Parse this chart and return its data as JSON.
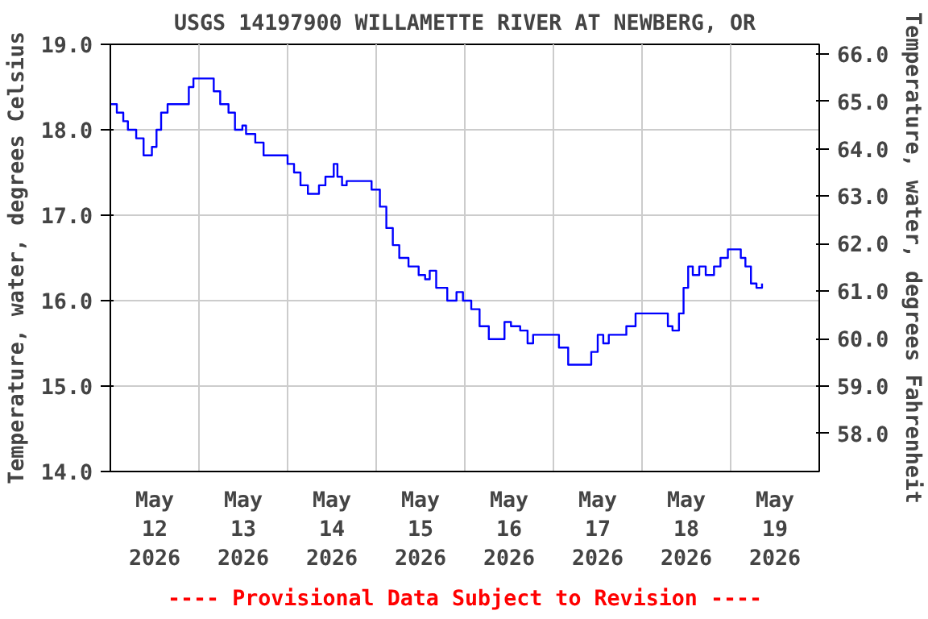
{
  "chart_data": {
    "type": "step",
    "title": "USGS 14197900 WILLAMETTE RIVER AT NEWBERG, OR",
    "ylabel": "Temperature, water, degrees Celsius",
    "y2label": "Temperature, water, degrees Fahrenheit",
    "annotations": [
      "---- Provisional Data Subject to Revision ----"
    ],
    "x": [
      "2026-05-12T00:00",
      "2026-05-12T01:45",
      "2026-05-12T03:30",
      "2026-05-12T04:45",
      "2026-05-12T07:00",
      "2026-05-12T09:00",
      "2026-05-12T11:15",
      "2026-05-12T12:30",
      "2026-05-12T13:45",
      "2026-05-12T15:30",
      "2026-05-12T19:30",
      "2026-05-12T21:15",
      "2026-05-12T22:30",
      "2026-05-13T02:30",
      "2026-05-13T04:00",
      "2026-05-13T05:45",
      "2026-05-13T08:00",
      "2026-05-13T09:45",
      "2026-05-13T11:45",
      "2026-05-13T12:45",
      "2026-05-13T15:15",
      "2026-05-13T17:30",
      "2026-05-13T22:15",
      "2026-05-14T00:00",
      "2026-05-14T01:45",
      "2026-05-14T03:30",
      "2026-05-14T05:30",
      "2026-05-14T08:30",
      "2026-05-14T10:15",
      "2026-05-14T12:30",
      "2026-05-14T13:30",
      "2026-05-14T14:45",
      "2026-05-14T16:00",
      "2026-05-14T21:30",
      "2026-05-14T22:45",
      "2026-05-15T01:00",
      "2026-05-15T02:45",
      "2026-05-15T04:30",
      "2026-05-15T06:15",
      "2026-05-15T08:45",
      "2026-05-15T11:30",
      "2026-05-15T13:15",
      "2026-05-15T14:30",
      "2026-05-15T16:15",
      "2026-05-15T19:15",
      "2026-05-15T21:45",
      "2026-05-15T23:30",
      "2026-05-16T01:45",
      "2026-05-16T04:00",
      "2026-05-16T06:30",
      "2026-05-16T09:00",
      "2026-05-16T10:45",
      "2026-05-16T12:30",
      "2026-05-16T15:00",
      "2026-05-16T17:00",
      "2026-05-16T18:30",
      "2026-05-16T23:45",
      "2026-05-17T01:30",
      "2026-05-17T04:00",
      "2026-05-17T08:30",
      "2026-05-17T10:15",
      "2026-05-17T12:00",
      "2026-05-17T13:30",
      "2026-05-17T15:00",
      "2026-05-17T18:00",
      "2026-05-17T19:45",
      "2026-05-17T22:15",
      "2026-05-18T04:45",
      "2026-05-18T07:00",
      "2026-05-18T08:15",
      "2026-05-18T10:00",
      "2026-05-18T11:15",
      "2026-05-18T12:30",
      "2026-05-18T13:45",
      "2026-05-18T15:30",
      "2026-05-18T17:15",
      "2026-05-18T19:30",
      "2026-05-18T21:15",
      "2026-05-18T23:15",
      "2026-05-19T01:00",
      "2026-05-19T02:45",
      "2026-05-19T04:00",
      "2026-05-19T05:30",
      "2026-05-19T07:00",
      "2026-05-19T08:30"
    ],
    "series": [
      {
        "color": "#0000ff",
        "values": [
          18.3,
          18.2,
          18.1,
          18.0,
          17.9,
          17.7,
          17.8,
          18.0,
          18.2,
          18.3,
          18.3,
          18.5,
          18.6,
          18.6,
          18.45,
          18.3,
          18.2,
          18.0,
          18.05,
          17.95,
          17.85,
          17.7,
          17.7,
          17.6,
          17.5,
          17.35,
          17.25,
          17.35,
          17.45,
          17.6,
          17.45,
          17.35,
          17.4,
          17.4,
          17.3,
          17.1,
          16.85,
          16.65,
          16.5,
          16.4,
          16.3,
          16.25,
          16.35,
          16.15,
          16.0,
          16.1,
          16.0,
          15.9,
          15.7,
          15.55,
          15.55,
          15.75,
          15.7,
          15.65,
          15.5,
          15.6,
          15.6,
          15.45,
          15.25,
          15.25,
          15.4,
          15.6,
          15.5,
          15.6,
          15.6,
          15.7,
          15.85,
          15.85,
          15.7,
          15.65,
          15.85,
          16.15,
          16.4,
          16.3,
          16.4,
          16.3,
          16.4,
          16.5,
          16.6,
          16.6,
          16.5,
          16.4,
          16.2,
          16.15,
          16.2
        ]
      }
    ],
    "xlim": [
      "2026-05-12T00:00",
      "2026-05-20T00:00"
    ],
    "xticks": [
      {
        "value": "2026-05-12T12:00",
        "label": "May\n12\n2026"
      },
      {
        "value": "2026-05-13T12:00",
        "label": "May\n13\n2026"
      },
      {
        "value": "2026-05-14T12:00",
        "label": "May\n14\n2026"
      },
      {
        "value": "2026-05-15T12:00",
        "label": "May\n15\n2026"
      },
      {
        "value": "2026-05-16T12:00",
        "label": "May\n16\n2026"
      },
      {
        "value": "2026-05-17T12:00",
        "label": "May\n17\n2026"
      },
      {
        "value": "2026-05-18T12:00",
        "label": "May\n18\n2026"
      },
      {
        "value": "2026-05-19T12:00",
        "label": "May\n19\n2026"
      },
      {
        "value": "2026-05-13T00:00",
        "label": null
      },
      {
        "value": "2026-05-14T00:00",
        "label": null
      },
      {
        "value": "2026-05-15T00:00",
        "label": null
      },
      {
        "value": "2026-05-16T00:00",
        "label": null
      },
      {
        "value": "2026-05-17T00:00",
        "label": null
      },
      {
        "value": "2026-05-18T00:00",
        "label": null
      },
      {
        "value": "2026-05-19T00:00",
        "label": null
      }
    ],
    "ylim": [
      14.0,
      19.0
    ],
    "yticks": [
      {
        "value": 14,
        "label": "14.0"
      },
      {
        "value": 15,
        "label": "15.0"
      },
      {
        "value": 16,
        "label": "16.0"
      },
      {
        "value": 17,
        "label": "17.0"
      },
      {
        "value": 18,
        "label": "18.0"
      },
      {
        "value": 19,
        "label": "19.0"
      }
    ],
    "y2lim": [
      57.2,
      66.2
    ],
    "y2ticks": [
      {
        "value": 58,
        "label": "58.0"
      },
      {
        "value": 59,
        "label": "59.0"
      },
      {
        "value": 60,
        "label": "60.0"
      },
      {
        "value": 61,
        "label": "61.0"
      },
      {
        "value": 62,
        "label": "62.0"
      },
      {
        "value": 63,
        "label": "63.0"
      },
      {
        "value": 64,
        "label": "64.0"
      },
      {
        "value": 65,
        "label": "65.0"
      },
      {
        "value": 66,
        "label": "66.0"
      }
    ],
    "grid": true
  }
}
